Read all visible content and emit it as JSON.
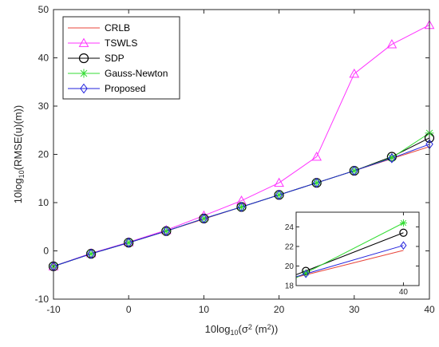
{
  "chart_data": [
    {
      "id": "main",
      "type": "line",
      "xlabel": "10log",
      "xlabel_sub": "10",
      "xlabel_rest": "(σ",
      "xlabel_sup": "2",
      "xlabel_end": " (m",
      "xlabel_sup2": "2",
      "xlabel_tail": "))",
      "ylabel": "10log",
      "ylabel_sub": "10",
      "ylabel_rest": "(RMSE(u)(m))",
      "xlim": [
        -10,
        40
      ],
      "ylim": [
        -10,
        50
      ],
      "x_ticks": [
        -10,
        0,
        10,
        20,
        30,
        40
      ],
      "y_ticks": [
        -10,
        0,
        10,
        20,
        30,
        40,
        50
      ],
      "grid": false,
      "legend_position": "top-left",
      "x": [
        -10,
        -5,
        0,
        5,
        10,
        15,
        20,
        25,
        30,
        35,
        40
      ],
      "series": [
        {
          "name": "CRLB",
          "color": "#e8443a",
          "marker": "none",
          "values": [
            -3.2,
            -0.6,
            1.7,
            4.1,
            6.6,
            9.1,
            11.6,
            14.1,
            16.6,
            19.1,
            21.6
          ]
        },
        {
          "name": "TSWLS",
          "color": "#ff33ff",
          "marker": "triangle",
          "values": [
            -3.2,
            -0.5,
            1.8,
            4.3,
            7.3,
            10.4,
            14.1,
            19.5,
            36.7,
            42.8,
            46.8
          ]
        },
        {
          "name": "SDP",
          "color": "#000000",
          "marker": "circle",
          "values": [
            -3.2,
            -0.6,
            1.7,
            4.1,
            6.7,
            9.1,
            11.6,
            14.1,
            16.6,
            19.5,
            23.4
          ]
        },
        {
          "name": "Gauss-Newton",
          "color": "#33dd33",
          "marker": "asterisk",
          "values": [
            -3.2,
            -0.6,
            1.7,
            4.1,
            6.7,
            9.1,
            11.6,
            14.1,
            16.6,
            19.3,
            24.4
          ]
        },
        {
          "name": "Proposed",
          "color": "#2222dd",
          "marker": "diamond",
          "values": [
            -3.2,
            -0.6,
            1.7,
            4.1,
            6.7,
            9.1,
            11.6,
            14.1,
            16.6,
            19.2,
            22.1
          ]
        }
      ]
    },
    {
      "id": "inset",
      "type": "line",
      "xlim": [
        34.5,
        40.8
      ],
      "ylim": [
        18,
        25.5
      ],
      "x_ticks": [
        40
      ],
      "y_ticks": [
        18,
        20,
        22,
        24
      ],
      "grid": false,
      "x": [
        35,
        40
      ],
      "series": [
        {
          "name": "CRLB",
          "color": "#e8443a",
          "marker": "none",
          "values": [
            19.1,
            21.6
          ]
        },
        {
          "name": "SDP",
          "color": "#000000",
          "marker": "circle",
          "values": [
            19.5,
            23.4
          ]
        },
        {
          "name": "Gauss-Newton",
          "color": "#33dd33",
          "marker": "asterisk",
          "values": [
            19.3,
            24.4
          ]
        },
        {
          "name": "Proposed",
          "color": "#2222dd",
          "marker": "diamond",
          "values": [
            19.2,
            22.1
          ]
        }
      ]
    }
  ]
}
